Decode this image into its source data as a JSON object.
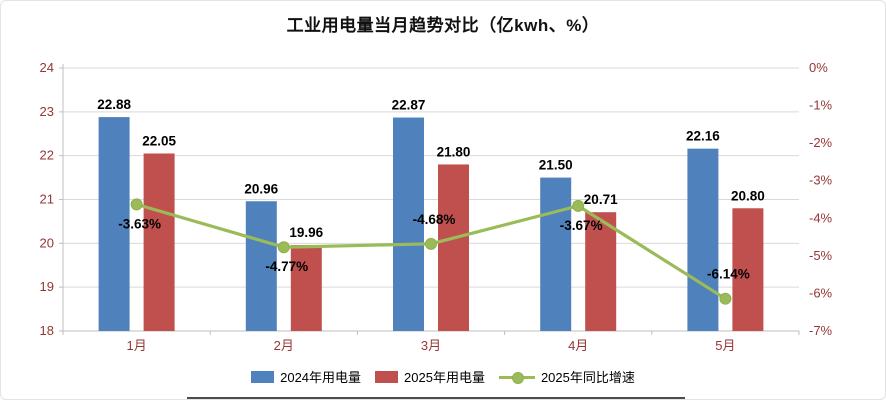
{
  "title": "工业用电量当月趋势对比（亿kwh、%）",
  "colors": {
    "bar2024": "#4F81BD",
    "bar2025": "#C0504D",
    "line2025": "#9BBB59",
    "line_marker": "#8FAF4C",
    "axis_label": "#963634",
    "value_label": "#000000",
    "grid": "#D9D9D9",
    "axis_line": "#BFBFBF"
  },
  "chart_data": {
    "type": "bar",
    "subtype": "bar+line combo, dual axis",
    "title": "工业用电量当月趋势对比（亿kwh、%）",
    "categories": [
      "1月",
      "2月",
      "3月",
      "4月",
      "5月"
    ],
    "series": [
      {
        "name": "2024年用电量",
        "type": "bar",
        "axis": "left",
        "values": [
          22.88,
          20.96,
          22.87,
          21.5,
          22.16
        ],
        "labels": [
          "22.88",
          "20.96",
          "22.87",
          "21.50",
          "22.16"
        ]
      },
      {
        "name": "2025年用电量",
        "type": "bar",
        "axis": "left",
        "values": [
          22.05,
          19.96,
          21.8,
          20.71,
          20.8
        ],
        "labels": [
          "22.05",
          "19.96",
          "21.80",
          "20.71",
          "20.80"
        ]
      },
      {
        "name": "2025年同比增速",
        "type": "line",
        "axis": "right",
        "values": [
          -3.63,
          -4.77,
          -4.68,
          -3.67,
          -6.14
        ],
        "labels": [
          "-3.63%",
          "-4.77%",
          "-4.68%",
          "-3.67%",
          "-6.14%"
        ],
        "label_position": [
          "below",
          "below",
          "above",
          "below",
          "above"
        ]
      }
    ],
    "left_axis": {
      "min": 18,
      "max": 24,
      "ticks": [
        24,
        23,
        22,
        21,
        20,
        19,
        18
      ],
      "tick_labels": [
        "24",
        "23",
        "22",
        "21",
        "20",
        "19",
        "18"
      ]
    },
    "right_axis": {
      "min": -7,
      "max": 0,
      "ticks": [
        0,
        -1,
        -2,
        -3,
        -4,
        -5,
        -6,
        -7
      ],
      "tick_labels": [
        "0%",
        "-1%",
        "-2%",
        "-3%",
        "-4%",
        "-5%",
        "-6%",
        "-7%"
      ]
    },
    "grid": true,
    "legend_position": "bottom"
  }
}
